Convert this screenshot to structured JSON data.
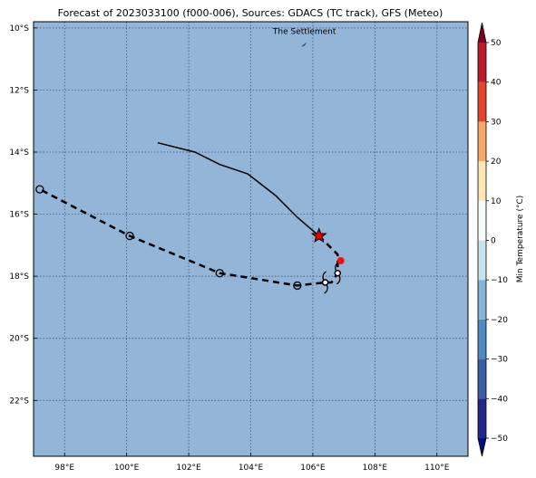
{
  "title": "Forecast of 2023033100 (f000-006), Sources: GDACS (TC track), GFS (Meteo)",
  "map": {
    "lon_range": [
      97,
      111
    ],
    "lat_range": [
      -23.8,
      -9.8
    ],
    "ocean_color": "#93b5d8",
    "grid": true,
    "x_ticks": [
      {
        "value": 98,
        "label": "98°E"
      },
      {
        "value": 100,
        "label": "100°E"
      },
      {
        "value": 102,
        "label": "102°E"
      },
      {
        "value": 104,
        "label": "104°E"
      },
      {
        "value": 106,
        "label": "106°E"
      },
      {
        "value": 108,
        "label": "108°E"
      },
      {
        "value": 110,
        "label": "110°E"
      }
    ],
    "y_ticks": [
      {
        "value": -10,
        "label": "10°S"
      },
      {
        "value": -12,
        "label": "12°S"
      },
      {
        "value": -14,
        "label": "14°S"
      },
      {
        "value": -16,
        "label": "16°S"
      },
      {
        "value": -18,
        "label": "18°S"
      },
      {
        "value": -20,
        "label": "20°S"
      },
      {
        "value": -22,
        "label": "22°S"
      }
    ],
    "place": {
      "label": "The Settlement",
      "lon": 105.7,
      "lat": -10.45
    }
  },
  "tracks": {
    "observed": [
      [
        101.0,
        -13.7
      ],
      [
        102.2,
        -14.0
      ],
      [
        103.0,
        -14.4
      ],
      [
        103.9,
        -14.7
      ],
      [
        104.8,
        -15.4
      ],
      [
        105.5,
        -16.1
      ],
      [
        106.2,
        -16.7
      ]
    ],
    "forecast": [
      [
        106.2,
        -16.7
      ],
      [
        106.8,
        -17.3
      ],
      [
        106.8,
        -17.9
      ],
      [
        106.6,
        -18.2
      ],
      [
        106.4,
        -18.2
      ],
      [
        105.5,
        -18.3
      ],
      [
        103.0,
        -17.9
      ],
      [
        100.1,
        -16.7
      ],
      [
        97.2,
        -15.2
      ]
    ],
    "circle_markers": [
      [
        97.2,
        -15.2
      ],
      [
        100.1,
        -16.7
      ],
      [
        103.0,
        -17.9
      ],
      [
        105.5,
        -18.3
      ]
    ],
    "cyclone_symbols": [
      [
        106.4,
        -18.2
      ],
      [
        106.8,
        -17.9
      ]
    ],
    "current_position": [
      106.2,
      -16.7
    ],
    "red_marker": [
      106.9,
      -17.5
    ]
  },
  "colorbar": {
    "label": "Min Temperature (°C)",
    "min": -55,
    "max": 55,
    "ticks": [
      -50,
      -40,
      -30,
      -20,
      -10,
      0,
      10,
      20,
      30,
      40,
      50
    ],
    "tick_labels": [
      "−50",
      "−40",
      "−30",
      "−20",
      "−10",
      "0",
      "10",
      "20",
      "30",
      "40",
      "50"
    ],
    "bands": [
      {
        "from": -55,
        "to": -50,
        "color": "#050e7a"
      },
      {
        "from": -50,
        "to": -40,
        "color": "#23278a"
      },
      {
        "from": -40,
        "to": -30,
        "color": "#3a5ea4"
      },
      {
        "from": -30,
        "to": -20,
        "color": "#4f8ac0"
      },
      {
        "from": -20,
        "to": -10,
        "color": "#82b4d8"
      },
      {
        "from": -10,
        "to": 0,
        "color": "#c6e3f0"
      },
      {
        "from": 0,
        "to": 10,
        "color": "#f7fbfc"
      },
      {
        "from": 10,
        "to": 20,
        "color": "#fde8b4"
      },
      {
        "from": 20,
        "to": 30,
        "color": "#f8a76a"
      },
      {
        "from": 30,
        "to": 40,
        "color": "#e4432c"
      },
      {
        "from": 40,
        "to": 50,
        "color": "#bb1b2a"
      },
      {
        "from": 50,
        "to": 55,
        "color": "#7e0023"
      }
    ]
  }
}
